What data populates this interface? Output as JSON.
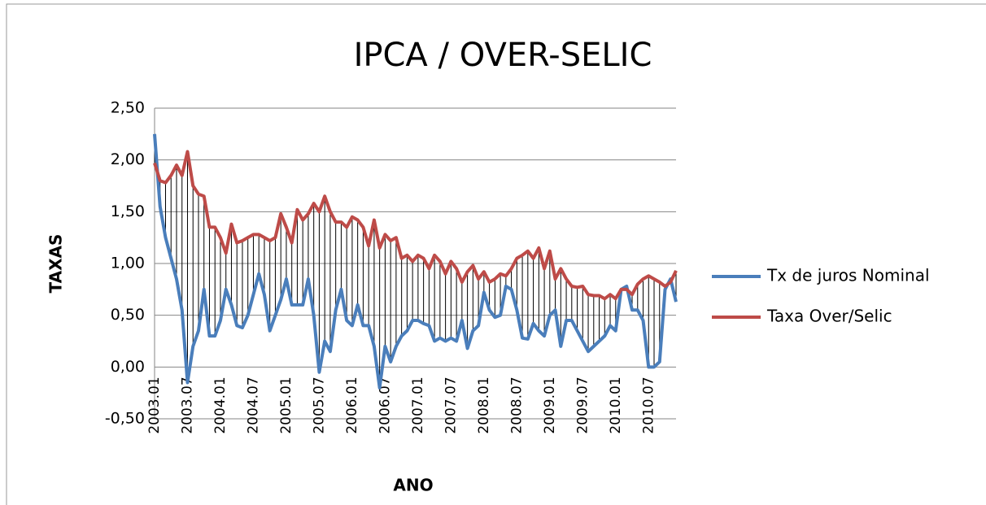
{
  "chart_data": {
    "type": "line",
    "title": "IPCA / OVER-SELIC",
    "ylabel": "TAXAS",
    "xlabel": "ANO",
    "categories": [
      "2003.01",
      null,
      null,
      null,
      null,
      null,
      "2003.07",
      null,
      null,
      null,
      null,
      null,
      "2004.01",
      null,
      null,
      null,
      null,
      null,
      "2004.07",
      null,
      null,
      null,
      null,
      null,
      "2005.01",
      null,
      null,
      null,
      null,
      null,
      "2005.07",
      null,
      null,
      null,
      null,
      null,
      "2006.01",
      null,
      null,
      null,
      null,
      null,
      "2006.07",
      null,
      null,
      null,
      null,
      null,
      "2007.01",
      null,
      null,
      null,
      null,
      null,
      "2007.07",
      null,
      null,
      null,
      null,
      null,
      "2008.01",
      null,
      null,
      null,
      null,
      null,
      "2008.07",
      null,
      null,
      null,
      null,
      null,
      "2009.01",
      null,
      null,
      null,
      null,
      null,
      "2009.07",
      null,
      null,
      null,
      null,
      null,
      "2010.01",
      null,
      null,
      null,
      null,
      null,
      "2010.07",
      null,
      null,
      null,
      null,
      null
    ],
    "series": [
      {
        "name": "Tx de juros Nominal",
        "color": "#4a7ebb",
        "values": [
          2.25,
          1.55,
          1.25,
          1.05,
          0.85,
          0.55,
          -0.15,
          0.2,
          0.35,
          0.75,
          0.3,
          0.3,
          0.45,
          0.75,
          0.6,
          0.4,
          0.38,
          0.5,
          0.7,
          0.9,
          0.7,
          0.35,
          0.5,
          0.65,
          0.85,
          0.6,
          0.6,
          0.6,
          0.85,
          0.5,
          -0.05,
          0.25,
          0.15,
          0.55,
          0.75,
          0.45,
          0.4,
          0.6,
          0.4,
          0.4,
          0.2,
          -0.2,
          0.2,
          0.05,
          0.2,
          0.3,
          0.35,
          0.45,
          0.45,
          0.42,
          0.4,
          0.25,
          0.28,
          0.25,
          0.28,
          0.25,
          0.45,
          0.18,
          0.35,
          0.4,
          0.72,
          0.55,
          0.48,
          0.5,
          0.78,
          0.75,
          0.55,
          0.28,
          0.27,
          0.42,
          0.35,
          0.3,
          0.5,
          0.55,
          0.2,
          0.45,
          0.45,
          0.35,
          0.25,
          0.15,
          0.2,
          0.25,
          0.3,
          0.4,
          0.35,
          0.75,
          0.78,
          0.55,
          0.55,
          0.45,
          0.0,
          0.0,
          0.05,
          0.75,
          0.85,
          0.63
        ]
      },
      {
        "name": "Taxa Over/Selic",
        "color": "#be4b48",
        "values": [
          1.97,
          1.8,
          1.78,
          1.85,
          1.95,
          1.85,
          2.08,
          1.75,
          1.67,
          1.65,
          1.35,
          1.35,
          1.25,
          1.1,
          1.38,
          1.2,
          1.22,
          1.25,
          1.28,
          1.28,
          1.25,
          1.22,
          1.25,
          1.48,
          1.35,
          1.2,
          1.52,
          1.42,
          1.48,
          1.58,
          1.5,
          1.65,
          1.5,
          1.4,
          1.4,
          1.35,
          1.45,
          1.42,
          1.35,
          1.17,
          1.42,
          1.15,
          1.28,
          1.22,
          1.25,
          1.05,
          1.08,
          1.02,
          1.08,
          1.05,
          0.95,
          1.08,
          1.02,
          0.9,
          1.02,
          0.95,
          0.82,
          0.92,
          0.98,
          0.85,
          0.92,
          0.82,
          0.85,
          0.9,
          0.88,
          0.95,
          1.05,
          1.08,
          1.12,
          1.05,
          1.15,
          0.95,
          1.12,
          0.85,
          0.95,
          0.85,
          0.78,
          0.77,
          0.78,
          0.7,
          0.69,
          0.69,
          0.66,
          0.7,
          0.66,
          0.75,
          0.75,
          0.7,
          0.8,
          0.85,
          0.88,
          0.85,
          0.82,
          0.78,
          0.82,
          0.93
        ]
      }
    ],
    "ylim": [
      -0.5,
      2.5
    ],
    "yticks": [
      {
        "value": -0.5,
        "label": "-0,50"
      },
      {
        "value": 0,
        "label": "0,00"
      },
      {
        "value": 0.5,
        "label": "0,50"
      },
      {
        "value": 1,
        "label": "1,00"
      },
      {
        "value": 1.5,
        "label": "1,50"
      },
      {
        "value": 2,
        "label": "2,00"
      },
      {
        "value": 2.5,
        "label": "2,50"
      }
    ],
    "grid": true,
    "high_low_lines": true,
    "legend": "right"
  }
}
